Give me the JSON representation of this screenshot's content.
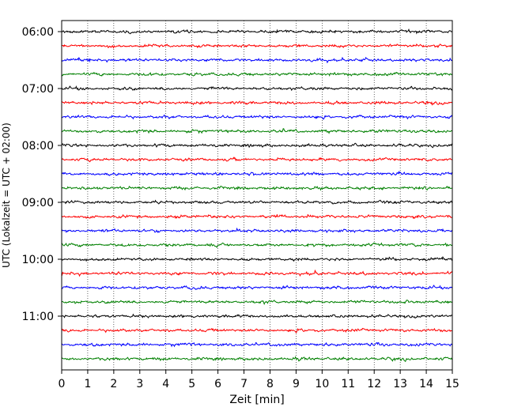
{
  "chart_data": {
    "type": "line",
    "title": "",
    "xlabel": "Zeit  [min]",
    "ylabel": "UTC (Lokalzeit = UTC + 02:00)",
    "xlim": [
      0,
      15
    ],
    "x_ticks": [
      0,
      1,
      2,
      3,
      4,
      5,
      6,
      7,
      8,
      9,
      10,
      11,
      12,
      13,
      14,
      15
    ],
    "y_ticks": [
      "06:00",
      "07:00",
      "08:00",
      "09:00",
      "10:00",
      "11:00"
    ],
    "grid": "vertical dotted",
    "legend": "none",
    "start_time": "06:00",
    "trace_interval_minutes": 15,
    "trace_count": 24,
    "trace_colors": [
      "#000000",
      "#ff0000",
      "#0000ff",
      "#008000"
    ]
  }
}
